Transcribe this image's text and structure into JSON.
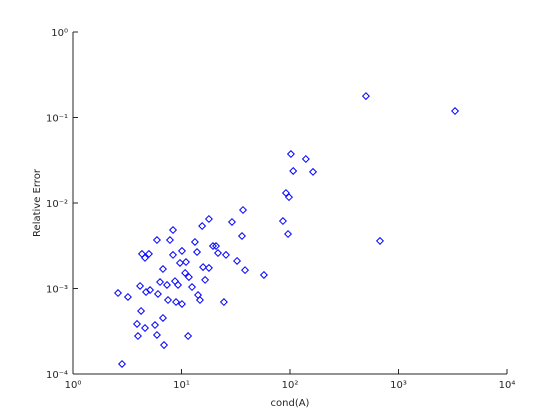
{
  "chart_data": {
    "type": "scatter",
    "xlabel": "cond(A)",
    "ylabel": "Relative Error",
    "x": [
      2.83,
      2.6,
      3.21,
      3.89,
      3.97,
      4.24,
      4.61,
      4.15,
      4.32,
      4.61,
      4.71,
      5.01,
      5.13,
      5.7,
      5.94,
      5.94,
      6.07,
      6.34,
      6.75,
      6.75,
      6.9,
      7.35,
      7.51,
      7.83,
      8.35,
      8.35,
      8.71,
      8.9,
      9.29,
      9.68,
      10.1,
      10.1,
      10.8,
      11.0,
      11.5,
      11.7,
      12.5,
      13.3,
      13.9,
      14.2,
      14.8,
      15.5,
      15.8,
      16.5,
      17.9,
      17.9,
      19.5,
      20.8,
      21.7,
      24.6,
      25.7,
      29.2,
      32.5,
      36.1,
      36.9,
      38.5,
      57.5,
      86.1,
      91.8,
      95.9,
      97.9,
      102,
      107,
      140,
      163,
      501,
      675,
      3320
    ],
    "values": [
      0.000131,
      0.000885,
      0.000796,
      0.000385,
      0.000278,
      0.000546,
      0.000345,
      0.00107,
      0.00254,
      0.00228,
      0.00091,
      0.00254,
      0.00096,
      0.000374,
      0.000286,
      0.00369,
      0.000863,
      0.00119,
      0.00169,
      0.000452,
      0.000218,
      0.0011,
      0.000733,
      0.00369,
      0.00483,
      0.00247,
      0.00122,
      0.000695,
      0.0011,
      0.00199,
      0.000659,
      0.00275,
      0.00152,
      0.00204,
      0.000278,
      0.00136,
      0.00104,
      0.0035,
      0.00267,
      0.000839,
      0.000733,
      0.00538,
      0.00178,
      0.00126,
      0.0065,
      0.00174,
      0.00314,
      0.00314,
      0.0026,
      0.000695,
      0.00247,
      0.006,
      0.0021,
      0.00411,
      0.00828,
      0.00164,
      0.00144,
      0.00615,
      0.0131,
      0.00434,
      0.0117,
      0.0374,
      0.0237,
      0.0327,
      0.0231,
      0.178,
      0.0036,
      0.119
    ],
    "color": "#0000ff",
    "marker": "diamond",
    "xlog": true,
    "ylog": true,
    "xlim": [
      1,
      10000
    ],
    "ylim": [
      0.0001,
      1
    ],
    "xticks": [
      {
        "value": 1,
        "label": "10⁰"
      },
      {
        "value": 10,
        "label": "10¹"
      },
      {
        "value": 100,
        "label": "10²"
      },
      {
        "value": 1000,
        "label": "10³"
      },
      {
        "value": 10000,
        "label": "10⁴"
      }
    ],
    "yticks": [
      {
        "value": 0.0001,
        "label": "10⁻⁴"
      },
      {
        "value": 0.001,
        "label": "10⁻³"
      },
      {
        "value": 0.01,
        "label": "10⁻²"
      },
      {
        "value": 0.1,
        "label": "10⁻¹"
      },
      {
        "value": 1,
        "label": "10⁰"
      }
    ]
  }
}
